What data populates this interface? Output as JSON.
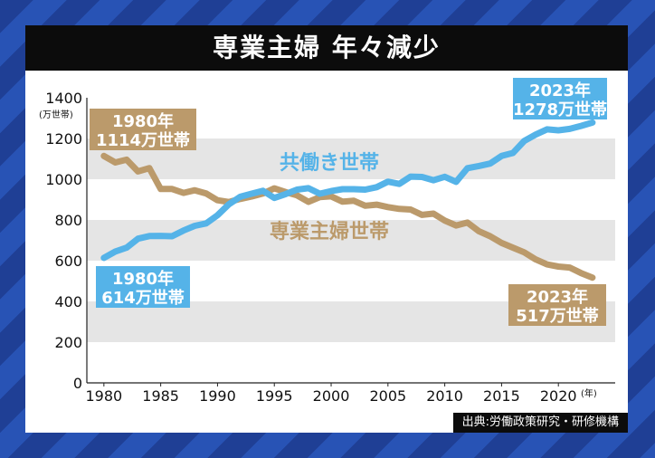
{
  "title": "専業主婦 年々減少",
  "source": "出典:労働政策研究・研修機構",
  "y_unit": "(万世帯)",
  "x_unit": "(年)",
  "colors": {
    "dual": "#55b3e8",
    "housewife": "#bb9a6b",
    "title_bg": "#0c0c0c",
    "band": "#e5e5e5",
    "background_stripe_dark": "#1f3f95",
    "background_stripe_light": "#2853b5"
  },
  "labels": {
    "dual_series": "共働き世帯",
    "housewife_series": "専業主婦世帯",
    "housewife_1980_year": "1980年",
    "housewife_1980_value": "1114万世帯",
    "dual_1980_year": "1980年",
    "dual_1980_value": "614万世帯",
    "dual_2023_year": "2023年",
    "dual_2023_value": "1278万世帯",
    "housewife_2023_year": "2023年",
    "housewife_2023_value": "517万世帯"
  },
  "chart_data": {
    "type": "line",
    "title": "専業主婦 年々減少",
    "xlabel": "(年)",
    "ylabel": "(万世帯)",
    "x_ticks": [
      1980,
      1985,
      1990,
      1995,
      2000,
      2005,
      2010,
      2015,
      2020
    ],
    "y_ticks": [
      0,
      200,
      400,
      600,
      800,
      1000,
      1200,
      1400
    ],
    "ylim": [
      0,
      1400
    ],
    "xlim": [
      1978.5,
      2025
    ],
    "grid": "alternating horizontal bands",
    "x": [
      1980,
      1981,
      1982,
      1983,
      1984,
      1985,
      1986,
      1987,
      1988,
      1989,
      1990,
      1991,
      1992,
      1993,
      1994,
      1995,
      1996,
      1997,
      1998,
      1999,
      2000,
      2001,
      2002,
      2003,
      2004,
      2005,
      2006,
      2007,
      2008,
      2009,
      2010,
      2011,
      2012,
      2013,
      2014,
      2015,
      2016,
      2017,
      2018,
      2019,
      2020,
      2021,
      2022,
      2023
    ],
    "series": [
      {
        "name": "共働き世帯",
        "color": "#55b3e8",
        "values": [
          614,
          645,
          664,
          708,
          721,
          722,
          720,
          748,
          771,
          783,
          823,
          877,
          914,
          929,
          943,
          908,
          927,
          949,
          956,
          929,
          942,
          951,
          951,
          949,
          961,
          988,
          977,
          1013,
          1011,
          995,
          1012,
          987,
          1054,
          1065,
          1077,
          1114,
          1129,
          1188,
          1219,
          1245,
          1240,
          1247,
          1262,
          1278
        ]
      },
      {
        "name": "専業主婦世帯",
        "color": "#bb9a6b",
        "values": [
          1114,
          1082,
          1096,
          1038,
          1054,
          952,
          952,
          933,
          946,
          930,
          897,
          888,
          903,
          915,
          930,
          955,
          937,
          921,
          889,
          912,
          916,
          890,
          894,
          870,
          875,
          863,
          854,
          851,
          825,
          831,
          797,
          773,
          787,
          745,
          720,
          687,
          664,
          641,
          606,
          582,
          571,
          566,
          539,
          517
        ]
      }
    ]
  }
}
